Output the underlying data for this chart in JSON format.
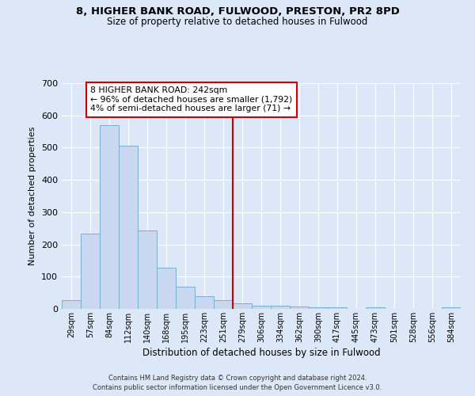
{
  "title_line1": "8, HIGHER BANK ROAD, FULWOOD, PRESTON, PR2 8PD",
  "title_line2": "Size of property relative to detached houses in Fulwood",
  "xlabel": "Distribution of detached houses by size in Fulwood",
  "ylabel": "Number of detached properties",
  "categories": [
    "29sqm",
    "57sqm",
    "84sqm",
    "112sqm",
    "140sqm",
    "168sqm",
    "195sqm",
    "223sqm",
    "251sqm",
    "279sqm",
    "306sqm",
    "334sqm",
    "362sqm",
    "390sqm",
    "417sqm",
    "445sqm",
    "473sqm",
    "501sqm",
    "528sqm",
    "556sqm",
    "584sqm"
  ],
  "values": [
    28,
    233,
    570,
    507,
    242,
    127,
    70,
    40,
    26,
    18,
    10,
    10,
    8,
    5,
    5,
    0,
    5,
    0,
    0,
    0,
    5
  ],
  "bar_color": "#c8d8f0",
  "bar_edge_color": "#7aadd4",
  "vline_x": 8.5,
  "vline_color": "#cc0000",
  "annotation_line1": "8 HIGHER BANK ROAD: 242sqm",
  "annotation_line2": "← 96% of detached houses are smaller (1,792)",
  "annotation_line3": "4% of semi-detached houses are larger (71) →",
  "annotation_box_color": "#cc0000",
  "background_color": "#dce8f8",
  "grid_color": "#ffffff",
  "ylim": [
    0,
    700
  ],
  "yticks": [
    0,
    100,
    200,
    300,
    400,
    500,
    600,
    700
  ],
  "footer_line1": "Contains HM Land Registry data © Crown copyright and database right 2024.",
  "footer_line2": "Contains public sector information licensed under the Open Government Licence v3.0."
}
